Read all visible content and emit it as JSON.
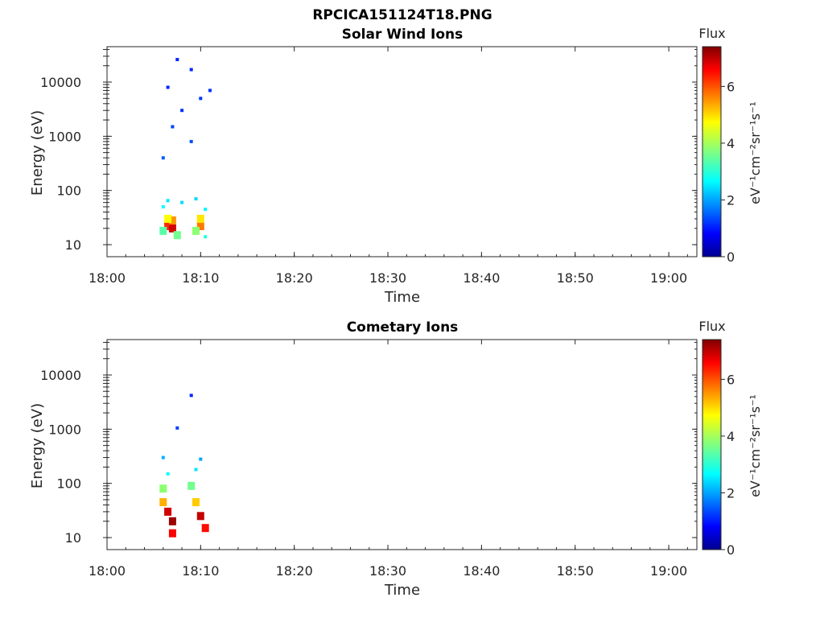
{
  "figure": {
    "title": "RPCICA151124T18.PNG"
  },
  "chart_data": [
    {
      "type": "heatmap",
      "title": "Solar Wind Ions",
      "xlabel": "Time",
      "ylabel": "Energy (eV)",
      "x_ticks": [
        "18:00",
        "18:10",
        "18:20",
        "18:30",
        "18:40",
        "18:50",
        "19:00"
      ],
      "x_range": [
        "18:00",
        "19:03"
      ],
      "y_scale": "log",
      "y_ticks": [
        "10",
        "100",
        "1000",
        "10000"
      ],
      "y_range": [
        6,
        45000
      ],
      "colorbar": {
        "label": "Flux",
        "unit": "eV⁻¹cm⁻²sr⁻¹s⁻¹",
        "range": [
          0,
          7.4
        ],
        "ticks": [
          "0",
          "2",
          "4",
          "6"
        ],
        "colormap": "jet"
      },
      "points": [
        {
          "t": "18:06.5",
          "e": 22,
          "v": 6.2
        },
        {
          "t": "18:07.0",
          "e": 20,
          "v": 6.8
        },
        {
          "t": "18:07.0",
          "e": 28,
          "v": 5.4
        },
        {
          "t": "18:06.5",
          "e": 30,
          "v": 4.6
        },
        {
          "t": "18:06.0",
          "e": 18,
          "v": 3.4
        },
        {
          "t": "18:07.5",
          "e": 15,
          "v": 3.6
        },
        {
          "t": "18:10.0",
          "e": 22,
          "v": 5.6
        },
        {
          "t": "18:10.0",
          "e": 30,
          "v": 4.8
        },
        {
          "t": "18:09.5",
          "e": 18,
          "v": 3.8
        },
        {
          "t": "18:10.5",
          "e": 14,
          "v": 3.0
        },
        {
          "t": "18:06.0",
          "e": 50,
          "v": 2.8
        },
        {
          "t": "18:06.5",
          "e": 65,
          "v": 2.6
        },
        {
          "t": "18:08.0",
          "e": 60,
          "v": 2.5
        },
        {
          "t": "18:09.5",
          "e": 70,
          "v": 2.5
        },
        {
          "t": "18:10.5",
          "e": 45,
          "v": 2.7
        },
        {
          "t": "18:06.0",
          "e": 400,
          "v": 1.6
        },
        {
          "t": "18:07.0",
          "e": 1500,
          "v": 1.4
        },
        {
          "t": "18:08.0",
          "e": 3000,
          "v": 1.3
        },
        {
          "t": "18:09.0",
          "e": 800,
          "v": 1.5
        },
        {
          "t": "18:10.0",
          "e": 5000,
          "v": 1.3
        },
        {
          "t": "18:06.5",
          "e": 8000,
          "v": 1.2
        },
        {
          "t": "18:07.5",
          "e": 26000,
          "v": 1.2
        },
        {
          "t": "18:09.0",
          "e": 17000,
          "v": 1.2
        },
        {
          "t": "18:11.0",
          "e": 7000,
          "v": 1.3
        }
      ]
    },
    {
      "type": "heatmap",
      "title": "Cometary Ions",
      "xlabel": "Time",
      "ylabel": "Energy (eV)",
      "x_ticks": [
        "18:00",
        "18:10",
        "18:20",
        "18:30",
        "18:40",
        "18:50",
        "19:00"
      ],
      "x_range": [
        "18:00",
        "19:03"
      ],
      "y_scale": "log",
      "y_ticks": [
        "10",
        "100",
        "1000",
        "10000"
      ],
      "y_range": [
        6,
        45000
      ],
      "colorbar": {
        "label": "Flux",
        "unit": "eV⁻¹cm⁻²sr⁻¹s⁻¹",
        "range": [
          0,
          7.4
        ],
        "ticks": [
          "0",
          "2",
          "4",
          "6"
        ],
        "colormap": "jet"
      },
      "points": [
        {
          "t": "18:06.5",
          "e": 30,
          "v": 6.8
        },
        {
          "t": "18:07.0",
          "e": 20,
          "v": 7.2
        },
        {
          "t": "18:07.0",
          "e": 12,
          "v": 6.5
        },
        {
          "t": "18:06.0",
          "e": 45,
          "v": 5.2
        },
        {
          "t": "18:06.0",
          "e": 80,
          "v": 3.8
        },
        {
          "t": "18:06.5",
          "e": 150,
          "v": 2.8
        },
        {
          "t": "18:06.0",
          "e": 300,
          "v": 2.2
        },
        {
          "t": "18:10.0",
          "e": 25,
          "v": 6.9
        },
        {
          "t": "18:10.5",
          "e": 15,
          "v": 6.4
        },
        {
          "t": "18:09.5",
          "e": 45,
          "v": 5.0
        },
        {
          "t": "18:09.0",
          "e": 90,
          "v": 3.6
        },
        {
          "t": "18:09.5",
          "e": 180,
          "v": 2.6
        },
        {
          "t": "18:10.0",
          "e": 280,
          "v": 2.1
        },
        {
          "t": "18:07.5",
          "e": 1050,
          "v": 1.4
        },
        {
          "t": "18:09.0",
          "e": 4200,
          "v": 1.2
        }
      ]
    }
  ]
}
